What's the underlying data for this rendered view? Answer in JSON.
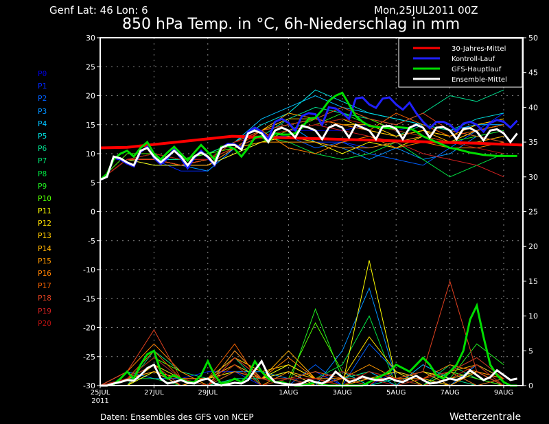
{
  "header": {
    "location": "Genf  Lat: 46 Lon: 6",
    "run": "Mon,25JUL2011 00Z",
    "title": "850 hPa Temp. in °C, 6h-Niederschlag in mm"
  },
  "footer": {
    "source": "Daten: Ensembles des GFS von NCEP",
    "brand": "Wetterzentrale"
  },
  "chart_data": {
    "type": "line",
    "title": "850 hPa Temp. in °C, 6h-Niederschlag in mm",
    "x_unit": "days since 25JUL2011 00Z",
    "x_range": [
      0,
      15.7
    ],
    "x_ticks": [
      {
        "day": 0,
        "label": "25JUL",
        "sub": "2011"
      },
      {
        "day": 2,
        "label": "27JUL"
      },
      {
        "day": 4,
        "label": "29JUL"
      },
      {
        "day": 7,
        "label": "1AUG"
      },
      {
        "day": 9,
        "label": "3AUG"
      },
      {
        "day": 11,
        "label": "5AUG"
      },
      {
        "day": 13,
        "label": "7AUG"
      },
      {
        "day": 15,
        "label": "9AUG"
      }
    ],
    "y_left": {
      "label": "850 hPa Temp. (°C)",
      "range": [
        -30,
        30
      ],
      "ticks": [
        "30",
        "25",
        "20",
        "15",
        "10",
        "5",
        "0",
        "-5",
        "-10",
        "-15",
        "-20",
        "-25",
        "-30"
      ]
    },
    "y_right": {
      "label": "6h-Niederschlag (mm)",
      "range": [
        0,
        50
      ],
      "ticks": [
        "50",
        "45",
        "40",
        "35",
        "30",
        "25",
        "20",
        "15",
        "10",
        "5",
        "0"
      ]
    },
    "grid": true,
    "legend": {
      "placement": "top-right",
      "entries": [
        {
          "label": "30-Jahres-Mittel",
          "color": "#ff0000"
        },
        {
          "label": "Kontroll-Lauf",
          "color": "#2020ff"
        },
        {
          "label": "GFS-Hauptlauf",
          "color": "#00dd00"
        },
        {
          "label": "Ensemble-Mittel",
          "color": "#ffffff"
        }
      ]
    },
    "step_days": 0.25,
    "climate_mean": {
      "days": [
        0,
        1,
        4.9,
        8,
        11,
        14,
        15.7
      ],
      "temp": [
        11,
        11.1,
        13,
        12.6,
        12.2,
        11.8,
        11.5
      ]
    },
    "ensemble_mean_temp": [
      5.5,
      6,
      9.5,
      9.2,
      8.5,
      8,
      10.5,
      11,
      9.5,
      8.5,
      9.5,
      10.5,
      9.5,
      8,
      9.5,
      10.2,
      9.5,
      8.2,
      11,
      11.5,
      11.5,
      10.7,
      13.5,
      14,
      13.5,
      12,
      14,
      14.5,
      14,
      12.8,
      14.8,
      14.5,
      14,
      12.5,
      14.5,
      15,
      14.5,
      12.8,
      15,
      14.5,
      14,
      12.5,
      14.7,
      14.8,
      14.3,
      12.5,
      14.5,
      15,
      14.5,
      12.8,
      14.5,
      14.6,
      14,
      12.5,
      14.3,
      14.4,
      13.8,
      12.3,
      14,
      14.2,
      13.5,
      12,
      13.5
    ],
    "control_temp": [
      5.5,
      6,
      9.3,
      9,
      8.3,
      7.8,
      10.3,
      11.2,
      9.3,
      8.2,
      9.2,
      10.8,
      9.2,
      7.5,
      9.3,
      10.5,
      9.3,
      8,
      11,
      11.7,
      11.6,
      11,
      13.8,
      14.5,
      13.8,
      12.5,
      15.5,
      16,
      15.3,
      14,
      16.5,
      17,
      16.8,
      15,
      18,
      17.8,
      17,
      16,
      19.5,
      19.7,
      18.5,
      17.9,
      19.5,
      19.7,
      18.5,
      17.6,
      18.8,
      17,
      15.5,
      14.4,
      15.5,
      15.5,
      15,
      13.8,
      15.2,
      15.5,
      15,
      13.8,
      15.3,
      15.8,
      15.5,
      14.5,
      15.7
    ],
    "gfs_temp": [
      5.5,
      6.5,
      9,
      10,
      10.5,
      9.5,
      11,
      12,
      10,
      9,
      10.2,
      11.2,
      10,
      8.8,
      10.2,
      11.5,
      10.3,
      9,
      11.2,
      11.3,
      10.8,
      9.5,
      11,
      12.8,
      13,
      12,
      13.5,
      13.3,
      13.3,
      13.5,
      14.5,
      16,
      16.2,
      17.5,
      19.1,
      20,
      20.5,
      18.5,
      16.5,
      15.5,
      14.8,
      14.6,
      14.5,
      14.4,
      14.6,
      14.5,
      14.4,
      13.8,
      13,
      12.5,
      12,
      11.5,
      11,
      10.8,
      10.5,
      10.2,
      10,
      9.8,
      9.7,
      9.6,
      9.6,
      9.6,
      9.6
    ],
    "ensemble_mean_precip": [
      0,
      0,
      0.3,
      0.5,
      0.8,
      0.7,
      1.5,
      2.5,
      3,
      1,
      0.3,
      0.5,
      0.8,
      0.4,
      0.3,
      0.8,
      1,
      0.3,
      0,
      0.2,
      0.4,
      0.3,
      0.8,
      2.2,
      3.5,
      1.5,
      0.5,
      0.3,
      0.2,
      0.1,
      0.3,
      0.8,
      0.5,
      0.3,
      0.8,
      2,
      1.2,
      0.5,
      0.8,
      1.3,
      1,
      0.8,
      0.8,
      1.1,
      0.7,
      0.5,
      1,
      1.4,
      0.8,
      0.3,
      0.4,
      0.7,
      1,
      0.8,
      1.2,
      2.2,
      1.5,
      0.8,
      1.2,
      2.2,
      1.5,
      0.8,
      1
    ],
    "gfs_precip": [
      0,
      0,
      0.2,
      1,
      2,
      1,
      3,
      4.5,
      5,
      2,
      1,
      1.5,
      1,
      0.5,
      0.5,
      1.5,
      3.5,
      1.5,
      0.3,
      0.5,
      1,
      0.5,
      1.5,
      3.5,
      2,
      1,
      0.5,
      0.5,
      0.2,
      0,
      0,
      0.2,
      0.5,
      0.1,
      0,
      0,
      0,
      0,
      0,
      0,
      0.5,
      1,
      1.5,
      2,
      3,
      2.5,
      2,
      3,
      4,
      3,
      1.5,
      1,
      2,
      3,
      5,
      9.5,
      11.5,
      7,
      3,
      1.5,
      0.5,
      0,
      0
    ],
    "members": [
      {
        "name": "P0",
        "color": "#0000e0",
        "temp": [
          5.5,
          9,
          9,
          8,
          8,
          11,
          13,
          14,
          14,
          14,
          15,
          14,
          15,
          14,
          15,
          15
        ],
        "precip": [
          0,
          1,
          2,
          0,
          1,
          3,
          1,
          2,
          0,
          1,
          0,
          2,
          1,
          0,
          3,
          0
        ]
      },
      {
        "name": "P1",
        "color": "#0028ff",
        "temp": [
          5.5,
          9,
          9,
          7,
          7,
          11,
          13,
          13,
          12,
          12,
          11,
          12,
          13,
          12,
          14,
          17
        ],
        "precip": [
          0,
          0,
          3,
          1,
          2,
          2,
          0,
          1,
          2,
          0,
          1,
          1,
          0,
          2,
          1,
          0
        ]
      },
      {
        "name": "P2",
        "color": "#0060ff",
        "temp": [
          5.5,
          9,
          8,
          8,
          8,
          10,
          12,
          13,
          11,
          12,
          10,
          9,
          8,
          11,
          14,
          15
        ],
        "precip": [
          0,
          1,
          2,
          0,
          0,
          4,
          1,
          0,
          3,
          0,
          6,
          2,
          0,
          1,
          2,
          0
        ]
      },
      {
        "name": "P3",
        "color": "#0090ff",
        "temp": [
          5.5,
          9,
          9,
          8,
          7,
          11,
          14,
          15,
          12,
          11,
          9,
          11,
          9,
          10,
          13,
          14
        ],
        "precip": [
          0,
          2,
          1,
          1,
          0,
          2,
          2,
          1,
          0,
          5,
          14,
          1,
          2,
          0,
          3,
          1
        ]
      },
      {
        "name": "P4",
        "color": "#00c0ff",
        "temp": [
          5.5,
          9,
          10,
          9,
          10,
          12,
          16,
          18,
          20,
          18,
          17,
          16,
          15,
          14,
          15,
          15
        ],
        "precip": [
          0,
          1,
          4,
          1,
          0,
          5,
          1,
          2,
          0,
          1,
          2,
          0,
          3,
          1,
          2,
          0
        ]
      },
      {
        "name": "P5",
        "color": "#00e0e0",
        "temp": [
          5.5,
          9,
          9,
          9,
          10,
          12,
          15,
          17,
          21,
          19,
          17,
          16,
          15,
          14,
          16,
          17
        ],
        "precip": [
          0,
          0,
          2,
          0,
          1,
          3,
          0,
          0,
          1,
          2,
          0,
          1,
          0,
          2,
          0,
          1
        ]
      },
      {
        "name": "P6",
        "color": "#00e090",
        "temp": [
          5.5,
          9,
          9,
          9,
          9,
          11,
          13,
          16,
          18,
          17,
          16,
          15,
          17,
          20,
          19,
          21
        ],
        "precip": [
          0,
          1,
          3,
          1,
          0,
          1,
          1,
          3,
          1,
          0,
          0,
          1,
          2,
          1,
          0,
          0
        ]
      },
      {
        "name": "P7",
        "color": "#00e070",
        "temp": [
          5.5,
          9,
          10,
          9,
          10,
          12,
          14,
          15,
          16,
          15,
          14,
          13,
          15,
          14,
          13,
          12
        ],
        "precip": [
          0,
          0,
          5,
          2,
          1,
          4,
          0,
          1,
          0,
          1,
          2,
          1,
          0,
          3,
          1,
          0
        ]
      },
      {
        "name": "P8",
        "color": "#00e040",
        "temp": [
          5.5,
          9,
          10,
          9,
          10,
          11,
          13,
          12,
          10,
          9,
          10,
          12,
          9,
          6,
          8,
          10
        ],
        "precip": [
          0,
          1,
          1,
          0,
          0,
          2,
          1,
          2,
          1,
          3,
          10,
          0,
          1,
          2,
          4,
          1
        ]
      },
      {
        "name": "P9",
        "color": "#20f020",
        "temp": [
          5.5,
          9,
          9,
          8,
          9,
          11,
          13,
          14,
          15,
          17,
          15,
          14,
          13,
          12,
          13,
          14
        ],
        "precip": [
          0,
          0,
          3,
          1,
          0,
          2,
          1,
          0,
          11,
          1,
          1,
          2,
          0,
          1,
          6,
          3
        ]
      },
      {
        "name": "P10",
        "color": "#50ff00",
        "temp": [
          5.5,
          10,
          10,
          9,
          10,
          11,
          12,
          14,
          16,
          18,
          16,
          14,
          13,
          12,
          12,
          13
        ],
        "precip": [
          0,
          1,
          4,
          2,
          0,
          3,
          0,
          1,
          9,
          2,
          1,
          1,
          0,
          2,
          1,
          0
        ]
      },
      {
        "name": "P11",
        "color": "#ffff00",
        "temp": [
          5.5,
          9,
          8,
          8,
          8,
          10,
          12,
          13,
          12,
          10,
          12,
          11,
          13,
          12,
          14,
          15
        ],
        "precip": [
          0,
          0,
          2,
          1,
          1,
          2,
          1,
          3,
          1,
          0,
          18,
          1,
          2,
          1,
          3,
          0
        ]
      },
      {
        "name": "P12",
        "color": "#ffe000",
        "temp": [
          5.5,
          9,
          9,
          8,
          9,
          11,
          13,
          14,
          15,
          16,
          14,
          13,
          14,
          13,
          15,
          16
        ],
        "precip": [
          0,
          1,
          3,
          0,
          1,
          3,
          1,
          2,
          0,
          1,
          7,
          2,
          1,
          0,
          2,
          1
        ]
      },
      {
        "name": "P13",
        "color": "#ffc800",
        "temp": [
          5.5,
          9,
          9,
          8,
          9,
          12,
          14,
          16,
          16,
          15,
          15,
          13,
          14,
          13,
          15,
          16
        ],
        "precip": [
          0,
          1,
          2,
          1,
          0,
          4,
          2,
          3,
          1,
          0,
          1,
          2,
          0,
          1,
          2,
          0
        ]
      },
      {
        "name": "P14",
        "color": "#ffb000",
        "temp": [
          5.5,
          9,
          9,
          8,
          9,
          11,
          14,
          17,
          16,
          15,
          14,
          13,
          14,
          12,
          14,
          15
        ],
        "precip": [
          0,
          0,
          3,
          1,
          1,
          4,
          1,
          5,
          1,
          0,
          1,
          1,
          1,
          2,
          3,
          1
        ]
      },
      {
        "name": "P15",
        "color": "#ff9800",
        "temp": [
          5.5,
          9,
          9,
          8,
          8,
          11,
          12,
          12,
          12,
          11,
          11,
          12,
          13,
          12,
          12,
          13
        ],
        "precip": [
          0,
          1,
          2,
          0,
          1,
          3,
          0,
          2,
          1,
          1,
          3,
          1,
          2,
          0,
          2,
          0
        ]
      },
      {
        "name": "P16",
        "color": "#ff8000",
        "temp": [
          5.5,
          9,
          9,
          8,
          9,
          12,
          14,
          11,
          10,
          12,
          13,
          11,
          12,
          11,
          11,
          12
        ],
        "precip": [
          0,
          2,
          6,
          2,
          0,
          5,
          1,
          4,
          1,
          0,
          2,
          1,
          1,
          3,
          2,
          1
        ]
      },
      {
        "name": "P17",
        "color": "#f06000",
        "temp": [
          5.5,
          9,
          9,
          8,
          9,
          11,
          14,
          15,
          16,
          15,
          14,
          17,
          15,
          13,
          14,
          15
        ],
        "precip": [
          0,
          1,
          5,
          1,
          1,
          6,
          0,
          1,
          2,
          1,
          0,
          3,
          1,
          2,
          0,
          1
        ]
      },
      {
        "name": "P18",
        "color": "#e04020",
        "temp": [
          5.5,
          9,
          9,
          8,
          9,
          12,
          14,
          15,
          16,
          18,
          16,
          15,
          17,
          14,
          13,
          12
        ],
        "precip": [
          0,
          2,
          8,
          1,
          0,
          2,
          1,
          1,
          0,
          1,
          1,
          1,
          2,
          15,
          2,
          0
        ]
      },
      {
        "name": "P19",
        "color": "#d02020",
        "temp": [
          5.5,
          9,
          10,
          9,
          9,
          11,
          13,
          14,
          15,
          14,
          13,
          12,
          10,
          9,
          8,
          6
        ],
        "precip": [
          0,
          1,
          3,
          0,
          0,
          4,
          1,
          0,
          1,
          2,
          1,
          0,
          1,
          2,
          4,
          1
        ]
      },
      {
        "name": "P20",
        "color": "#b01010",
        "temp": [
          5.5,
          9,
          10,
          9,
          9,
          12,
          13,
          14,
          15,
          16,
          15,
          14,
          13,
          12,
          11,
          10
        ],
        "precip": [
          0,
          1,
          4,
          1,
          0,
          3,
          0,
          1,
          1,
          0,
          2,
          1,
          0,
          1,
          3,
          0
        ]
      }
    ]
  }
}
